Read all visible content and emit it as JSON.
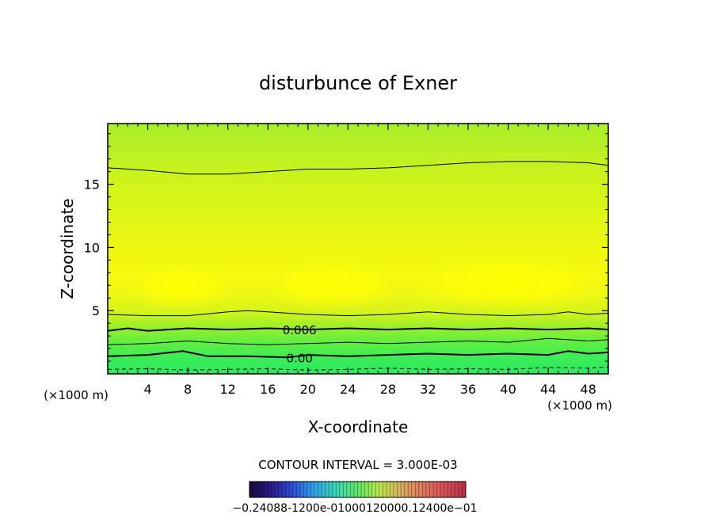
{
  "chart_data": {
    "type": "contour",
    "title": "disturbunce of Exner",
    "xlabel": "X-coordinate",
    "ylabel": "Z-coordinate",
    "x_unit_note": "(×1000 m)",
    "x_unit_note_right": "(×1000 m)",
    "xlim": [
      0,
      50
    ],
    "ylim": [
      0,
      19.8
    ],
    "x_ticks": [
      4,
      8,
      12,
      16,
      20,
      24,
      28,
      32,
      36,
      40,
      44,
      48
    ],
    "x_tick_labels": [
      "4",
      "8",
      "12",
      "16",
      "20",
      "24",
      "28",
      "32",
      "36",
      "40",
      "44",
      "48"
    ],
    "y_ticks": [
      5,
      10,
      15
    ],
    "y_tick_labels": [
      "5",
      "10",
      "15"
    ],
    "contour_interval_text": "CONTOUR INTERVAL = 3.000E-03",
    "contour_labels": [
      {
        "text": "0.006",
        "x": 16,
        "z": 3.5
      },
      {
        "text": "0.00",
        "x": 16,
        "z": 1.3
      }
    ],
    "contour_lines": [
      {
        "level": 0.0,
        "style": "dashed",
        "x": [
          0,
          4,
          8,
          12,
          16,
          20,
          24,
          28,
          32,
          36,
          40,
          44,
          48,
          50
        ],
        "z": [
          0.35,
          0.4,
          0.3,
          0.35,
          0.4,
          0.3,
          0.35,
          0.45,
          0.35,
          0.4,
          0.35,
          0.5,
          0.45,
          0.55
        ]
      },
      {
        "level": 0.003,
        "style": "bold",
        "x": [
          0,
          4,
          7.5,
          10,
          14,
          18,
          20,
          24,
          28,
          32,
          36,
          40,
          44,
          46,
          48,
          50
        ],
        "z": [
          1.4,
          1.5,
          1.8,
          1.4,
          1.4,
          1.3,
          1.5,
          1.4,
          1.5,
          1.6,
          1.5,
          1.6,
          1.5,
          1.8,
          1.6,
          1.7
        ]
      },
      {
        "level": 0.006,
        "style": "solid",
        "x": [
          0,
          4,
          8,
          12,
          16,
          20,
          24,
          28,
          32,
          36,
          40,
          44,
          48,
          50
        ],
        "z": [
          2.3,
          2.4,
          2.6,
          2.4,
          2.3,
          2.4,
          2.5,
          2.4,
          2.5,
          2.6,
          2.5,
          2.8,
          2.6,
          2.7
        ]
      },
      {
        "level": 0.009,
        "style": "bold",
        "x": [
          0,
          2,
          4,
          8,
          12,
          16,
          20,
          24,
          28,
          32,
          36,
          40,
          44,
          48,
          50
        ],
        "z": [
          3.4,
          3.6,
          3.4,
          3.6,
          3.5,
          3.6,
          3.5,
          3.6,
          3.5,
          3.6,
          3.5,
          3.6,
          3.5,
          3.6,
          3.5
        ]
      },
      {
        "level": 0.012,
        "style": "solid",
        "x": [
          0,
          4,
          8,
          12,
          14,
          16,
          20,
          24,
          28,
          32,
          36,
          40,
          44,
          46,
          48,
          50
        ],
        "z": [
          4.7,
          4.6,
          4.6,
          4.9,
          5.0,
          4.9,
          4.7,
          4.6,
          4.7,
          4.9,
          4.7,
          4.6,
          4.7,
          4.9,
          4.7,
          4.8
        ]
      },
      {
        "level": 0.012,
        "style": "solid",
        "x": [
          0,
          4,
          8,
          12,
          16,
          20,
          24,
          28,
          32,
          36,
          40,
          44,
          48,
          50
        ],
        "z": [
          16.3,
          16.1,
          15.8,
          15.8,
          16.0,
          16.2,
          16.2,
          16.3,
          16.5,
          16.7,
          16.8,
          16.8,
          16.7,
          16.5
        ]
      }
    ],
    "colorbar": {
      "tick_text": "−0.2408e-01 ... −0.1200e-01 ... 0.0012 ... 0.2400e-01 (overlapping labels)",
      "overlapping_labels": [
        "−0.2408e-01",
        "−0.1200e-01",
        "0.00012",
        "0.12",
        "0.2400e-01"
      ],
      "stops": [
        "#1a0a3a",
        "#2a1a8c",
        "#2f4fd8",
        "#31a3e8",
        "#38d8b8",
        "#5fe86a",
        "#b8e84a",
        "#d8b060",
        "#e07a5a",
        "#d8505a",
        "#b8304a"
      ]
    },
    "fill_palette": {
      "lowest": "#2ee860",
      "low": "#54ee44",
      "mid": "#9cf02a",
      "high": "#d2f41a",
      "highest": "#fdfd0a"
    }
  },
  "colorbar_label_text": "−0.24088-1200e-01000120000.12400e−01"
}
